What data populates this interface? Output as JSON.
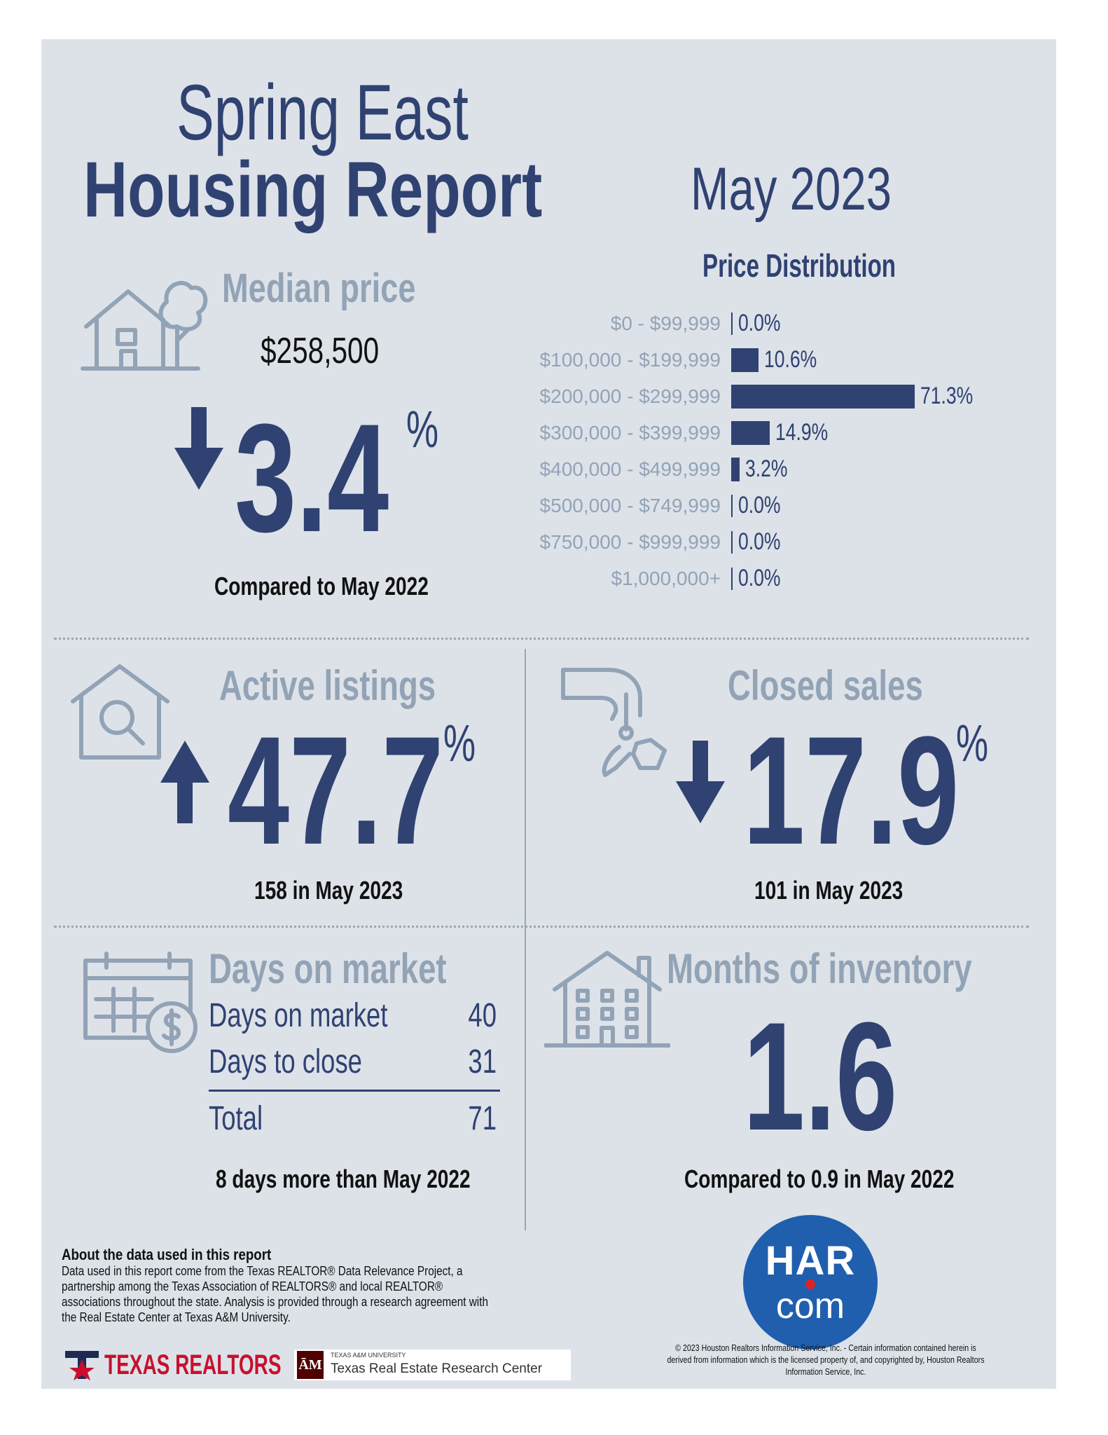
{
  "title": {
    "line1": "Spring East",
    "line2": "Housing Report",
    "month": "May 2023"
  },
  "median": {
    "label": "Median price",
    "price": "$258,500",
    "change": "3.4",
    "pct": "%",
    "direction": "down",
    "compare": "Compared to May 2022"
  },
  "chart_data": {
    "type": "bar",
    "title": "Price Distribution",
    "orientation": "horizontal",
    "categories": [
      "$0 - $99,999",
      "$100,000 - $199,999",
      "$200,000 - $299,999",
      "$300,000 - $399,999",
      "$400,000 - $499,999",
      "$500,000 - $749,999",
      "$750,000 - $999,999",
      "$1,000,000+"
    ],
    "values": [
      0.0,
      10.6,
      71.3,
      14.9,
      3.2,
      0.0,
      0.0,
      0.0
    ],
    "value_labels": [
      "0.0%",
      "10.6%",
      "71.3%",
      "14.9%",
      "3.2%",
      "0.0%",
      "0.0%",
      "0.0%"
    ],
    "color": "#2f4271"
  },
  "active": {
    "label": "Active listings",
    "change": "47.7",
    "pct": "%",
    "direction": "up",
    "detail": "158 in May 2023"
  },
  "closed": {
    "label": "Closed sales",
    "change": "17.9",
    "pct": "%",
    "direction": "down",
    "detail": "101 in May 2023"
  },
  "dom": {
    "label": "Days on market",
    "rows": [
      {
        "label": "Days on market",
        "value": "40"
      },
      {
        "label": "Days to close",
        "value": "31"
      }
    ],
    "total_label": "Total",
    "total_value": "71",
    "compare": "8 days more than May 2022"
  },
  "inventory": {
    "label": "Months of inventory",
    "value": "1.6",
    "compare": "Compared to 0.9 in May 2022"
  },
  "about": {
    "heading": "About the data used in this report",
    "text": "Data used in this report come from the Texas REALTOR® Data Relevance Project, a partnership among the Texas Association of REALTORS® and local REALTOR® associations throughout the state. Analysis is provided through a research agreement with the Real Estate Center at Texas A&M University."
  },
  "logos": {
    "har_line1": "HAR",
    "har_line2": "com",
    "texas_realtors": "TEXAS REALTORS",
    "tamu_small": "TEXAS A&M UNIVERSITY",
    "tamu_name": "Texas Real Estate Research Center"
  },
  "copyright": "© 2023 Houston Realtors Information Service, Inc. - Certain information contained herein is derived from information which is the licensed property of, and copyrighted by, Houston Realtors Information Service, Inc.",
  "colors": {
    "navy": "#2f4271",
    "gray": "#93a3b6",
    "panel": "#dde2e9",
    "har_blue": "#1f5fae",
    "har_red": "#d9252a",
    "tx_red": "#c8102e",
    "tamu_maroon": "#500000"
  }
}
